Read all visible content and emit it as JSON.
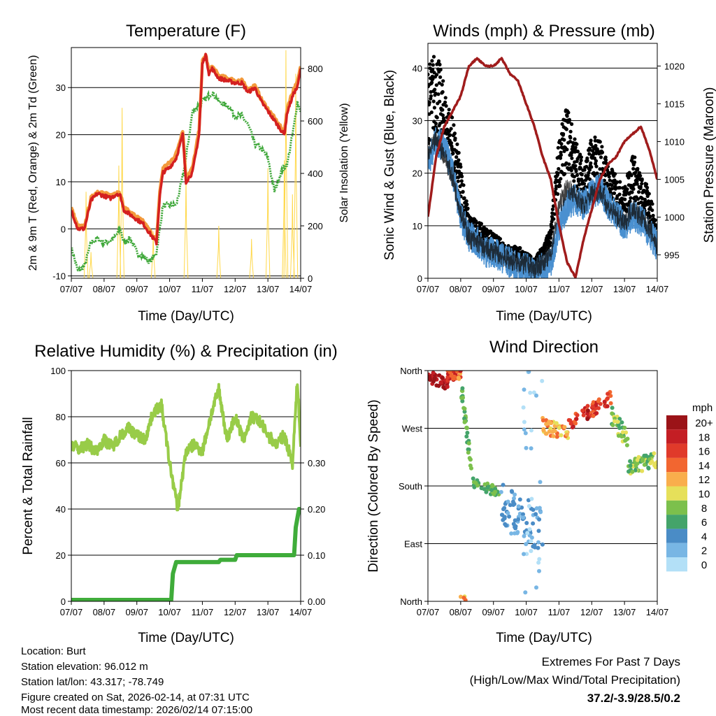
{
  "chart_data": [
    {
      "type": "line",
      "title": "Temperature (F)",
      "xlabel": "Time (Day/UTC)",
      "ylabel": "2m & 9m T (Red, Orange) & 2m Td (Green)",
      "ylabel_right": "Solar Insolation (Yellow)",
      "xticks": [
        "07/07",
        "08/07",
        "09/07",
        "10/07",
        "11/07",
        "12/07",
        "13/07",
        "14/07"
      ],
      "xlim": [
        0,
        7
      ],
      "ylim": [
        -10.5,
        38.5
      ],
      "yticks": [
        -10,
        0,
        10,
        20,
        30
      ],
      "ylim_right": [
        0,
        880
      ],
      "yticks_right": [
        0,
        200,
        400,
        600,
        800
      ],
      "grid": true,
      "series": [
        {
          "name": "2m T",
          "color": "#d42020",
          "x": [
            0,
            0.2,
            0.4,
            0.6,
            0.8,
            1.0,
            1.2,
            1.4,
            1.5,
            1.6,
            1.8,
            2.0,
            2.2,
            2.5,
            2.6,
            2.7,
            2.8,
            3.0,
            3.2,
            3.4,
            3.5,
            3.7,
            3.9,
            4.0,
            4.1,
            4.2,
            4.3,
            4.5,
            5.0,
            5.2,
            5.4,
            5.6,
            5.8,
            6.0,
            6.2,
            6.4,
            6.5,
            6.6,
            6.8,
            6.9,
            7.0
          ],
          "y": [
            4,
            0,
            0,
            6,
            7.5,
            7,
            6.5,
            7.5,
            7,
            4,
            3,
            2,
            1,
            -2,
            -3,
            7,
            12,
            13,
            15,
            20,
            10,
            12,
            20,
            35,
            37,
            33,
            34,
            32,
            31,
            31,
            29,
            30,
            27,
            25,
            23,
            21,
            20,
            25,
            29,
            30,
            34
          ]
        },
        {
          "name": "9m T",
          "color": "#f39a3c",
          "x": [
            0,
            0.2,
            0.4,
            0.6,
            0.8,
            1.0,
            1.2,
            1.4,
            1.5,
            1.6,
            1.8,
            2.0,
            2.2,
            2.5,
            2.6,
            2.7,
            2.8,
            3.0,
            3.2,
            3.4,
            3.5,
            3.7,
            3.9,
            4.0,
            4.1,
            4.2,
            4.3,
            4.5,
            5.0,
            5.2,
            5.4,
            5.6,
            5.8,
            6.0,
            6.2,
            6.4,
            6.5,
            6.6,
            6.8,
            6.9,
            7.0
          ],
          "y": [
            4.5,
            0.5,
            0.5,
            6.5,
            8,
            7.5,
            7,
            8,
            7.5,
            4.5,
            3.5,
            2.5,
            1.5,
            -1.5,
            -2.5,
            8,
            13,
            14,
            16,
            21,
            11,
            13,
            21,
            35.5,
            37,
            33.5,
            34.5,
            32.5,
            31.5,
            31.5,
            29.5,
            30.5,
            27.5,
            25.5,
            23.5,
            21.5,
            20.5,
            26,
            30,
            31,
            34.5
          ]
        },
        {
          "name": "2m Td",
          "color": "#3fa83a",
          "x": [
            0,
            0.2,
            0.4,
            0.6,
            0.8,
            1.0,
            1.3,
            1.5,
            1.6,
            1.8,
            2.0,
            2.4,
            2.6,
            2.7,
            2.8,
            3.0,
            3.2,
            3.4,
            3.5,
            3.7,
            4.0,
            4.3,
            4.5,
            4.8,
            5.0,
            5.2,
            5.4,
            5.6,
            5.8,
            6.0,
            6.2,
            6.4,
            6.6,
            6.8,
            6.9,
            7.0
          ],
          "y": [
            -4,
            -9,
            -8,
            -3,
            -2,
            -3,
            -2,
            0,
            -3,
            -2,
            -5,
            -7,
            -5,
            0,
            5,
            5,
            5,
            11,
            15,
            25,
            27,
            29,
            27,
            26,
            24,
            24,
            22,
            18,
            17,
            15,
            8,
            12,
            14,
            22,
            27,
            25
          ]
        },
        {
          "name": "Solar Insolation",
          "color": "#ffd84a",
          "axis": "right",
          "peaks_x": [
            0.45,
            0.6,
            1.45,
            1.55,
            2.5,
            3.5,
            4.5,
            5.5,
            6.0,
            6.5,
            6.55,
            6.75,
            6.85
          ],
          "peaks_y": [
            330,
            100,
            430,
            650,
            180,
            400,
            200,
            150,
            420,
            450,
            870,
            320,
            780
          ]
        }
      ]
    },
    {
      "type": "line",
      "title": "Winds (mph) & Pressure (mb)",
      "xlabel": "Time (Day/UTC)",
      "ylabel": "Sonic Wind & Gust (Blue, Black)",
      "ylabel_right": "Station Pressure (Maroon)",
      "xticks": [
        "07/07",
        "08/07",
        "09/07",
        "10/07",
        "11/07",
        "12/07",
        "13/07",
        "14/07"
      ],
      "xlim": [
        0,
        7
      ],
      "ylim": [
        0,
        44.7
      ],
      "yticks": [
        0,
        10,
        20,
        30,
        40
      ],
      "ylim_right": [
        991.9,
        1023.0
      ],
      "yticks_right": [
        995,
        1000,
        1005,
        1010,
        1015,
        1020
      ],
      "grid": true,
      "x": [
        0,
        0.25,
        0.5,
        0.75,
        1,
        1.25,
        1.5,
        1.75,
        2,
        2.25,
        2.5,
        2.75,
        3,
        3.25,
        3.5,
        3.75,
        4,
        4.25,
        4.5,
        4.75,
        5,
        5.25,
        5.5,
        5.75,
        6,
        6.25,
        6.5,
        6.75,
        7
      ],
      "series": [
        {
          "name": "Wind",
          "color": "#4a90d0",
          "values": [
            22,
            26,
            25,
            20,
            12,
            8,
            7,
            5,
            5,
            4,
            3,
            2,
            2,
            1,
            2,
            3,
            10,
            14,
            15,
            14,
            16,
            17,
            14,
            12,
            10,
            12,
            11,
            9,
            6
          ]
        },
        {
          "name": "Gust",
          "color": "#000000",
          "values": [
            33,
            36,
            30,
            25,
            18,
            10,
            9,
            8,
            7,
            6,
            5,
            5,
            4,
            3,
            5,
            8,
            22,
            27,
            22,
            18,
            22,
            22,
            18,
            16,
            14,
            20,
            16,
            14,
            8
          ]
        },
        {
          "name": "Pressure",
          "color": "#a01c1c",
          "axis": "right",
          "values": [
            1000,
            1008,
            1012,
            1014,
            1016,
            1020,
            1021,
            1020,
            1020,
            1021,
            1019,
            1018,
            1015,
            1012,
            1008,
            1005,
            999,
            994,
            992,
            997,
            1001,
            1005,
            1007,
            1008,
            1010,
            1011,
            1012,
            1009,
            1005
          ]
        }
      ]
    },
    {
      "type": "line",
      "title": "Relative Humidity (%) & Precipitation (in)",
      "xlabel": "Time (Day/UTC)",
      "ylabel": "Percent & Total Rainfall",
      "xticks": [
        "07/07",
        "08/07",
        "09/07",
        "10/07",
        "11/07",
        "12/07",
        "13/07",
        "14/07"
      ],
      "xlim": [
        0,
        7
      ],
      "ylim": [
        0,
        100
      ],
      "yticks": [
        0,
        20,
        40,
        60,
        80,
        100
      ],
      "ylim_right": [
        0,
        0.5
      ],
      "yticks_right": [
        "0.00",
        "0.10",
        "0.20",
        "0.30"
      ],
      "grid": true,
      "series": [
        {
          "name": "RH",
          "color": "#98cc48",
          "x": [
            0,
            0.25,
            0.5,
            0.75,
            1,
            1.25,
            1.5,
            1.75,
            2,
            2.25,
            2.5,
            2.75,
            3,
            3.25,
            3.5,
            3.75,
            4,
            4.25,
            4.5,
            4.75,
            5,
            5.25,
            5.5,
            5.75,
            6,
            6.25,
            6.5,
            6.75,
            6.9,
            7
          ],
          "y": [
            68,
            66,
            68,
            65,
            70,
            67,
            72,
            75,
            72,
            70,
            82,
            85,
            60,
            40,
            65,
            68,
            65,
            80,
            92,
            70,
            80,
            70,
            80,
            78,
            72,
            68,
            72,
            60,
            96,
            67
          ]
        },
        {
          "name": "Precipitation",
          "color": "#3fac3a",
          "axis": "right",
          "x": [
            0,
            3.05,
            3.1,
            3.2,
            4.5,
            4.55,
            5.0,
            5.05,
            6.8,
            6.85,
            6.95,
            7.0
          ],
          "y": [
            0.003,
            0.003,
            0.06,
            0.085,
            0.085,
            0.09,
            0.09,
            0.1,
            0.1,
            0.16,
            0.2,
            0.2
          ]
        }
      ]
    },
    {
      "type": "scatter",
      "title": "Wind Direction",
      "xlabel": "Time (Day/UTC)",
      "ylabel": "Direction (Colored By Speed)",
      "xticks": [
        "07/07",
        "08/07",
        "09/07",
        "10/07",
        "11/07",
        "12/07",
        "13/07",
        "14/07"
      ],
      "xlim": [
        0,
        7
      ],
      "ylim": [
        0,
        360
      ],
      "yticks": [
        "North",
        "East",
        "South",
        "West",
        "North"
      ],
      "grid": true,
      "legend": {
        "title": "mph",
        "position": "right",
        "labels": [
          "20+",
          "18",
          "16",
          "14",
          "12",
          "10",
          "8",
          "6",
          "4",
          "2",
          "0"
        ],
        "colors": [
          "#9b1318",
          "#c41e24",
          "#e03a2a",
          "#f26630",
          "#f9ae4c",
          "#e6e05a",
          "#7cc04c",
          "#44a46a",
          "#4a8cc6",
          "#78b6e4",
          "#b3e0f7"
        ]
      },
      "clusters": [
        {
          "t": [
            0.0,
            0.6
          ],
          "deg": [
            350,
            340
          ],
          "spread": 10,
          "speed": [
            18,
            20
          ],
          "n": 40
        },
        {
          "t": [
            0.6,
            1.0
          ],
          "deg": [
            352,
            355
          ],
          "spread": 8,
          "speed": [
            12,
            18
          ],
          "n": 40
        },
        {
          "t": [
            1.0,
            1.35
          ],
          "deg": [
            340,
            200
          ],
          "spread": 15,
          "speed": [
            6,
            9
          ],
          "n": 35
        },
        {
          "t": [
            1.35,
            2.2
          ],
          "deg": [
            185,
            170
          ],
          "spread": 8,
          "speed": [
            6,
            8
          ],
          "n": 40
        },
        {
          "t": [
            2.2,
            3.5
          ],
          "deg": [
            150,
            110
          ],
          "spread": 35,
          "speed": [
            2,
            5
          ],
          "n": 80
        },
        {
          "t": [
            2.9,
            3.5
          ],
          "deg": [
            0,
            360
          ],
          "spread": 0,
          "speed": [
            0,
            2
          ],
          "n": 30
        },
        {
          "t": [
            3.5,
            4.3
          ],
          "deg": [
            275,
            260
          ],
          "spread": 12,
          "speed": [
            9,
            14
          ],
          "n": 40
        },
        {
          "t": [
            4.3,
            5.6
          ],
          "deg": [
            275,
            320
          ],
          "spread": 12,
          "speed": [
            13,
            20
          ],
          "n": 60
        },
        {
          "t": [
            5.6,
            6.1
          ],
          "deg": [
            290,
            250
          ],
          "spread": 15,
          "speed": [
            6,
            10
          ],
          "n": 30
        },
        {
          "t": [
            6.1,
            7.0
          ],
          "deg": [
            210,
            220
          ],
          "spread": 12,
          "speed": [
            5,
            11
          ],
          "n": 60
        },
        {
          "t": [
            1.0,
            1.2
          ],
          "deg": [
            5,
            5
          ],
          "spread": 3,
          "speed": [
            10,
            14
          ],
          "n": 4
        }
      ]
    }
  ],
  "info": {
    "lines": [
      "Location: Burt",
      "Station elevation: 96.012 m",
      "Station lat/lon: 43.317; -78.749",
      "Figure created on Sat, 2026-02-14, at 07:31 UTC",
      "Most recent data timestamp: 2026/02/14 07:15:00"
    ],
    "extremes_title": "Extremes For Past 7 Days",
    "extremes_subtitle": "(High/Low/Max Wind/Total Precipitation)",
    "extremes_values": "37.2/-3.9/28.5/0.2",
    "extremes_color": "#cc2229"
  }
}
